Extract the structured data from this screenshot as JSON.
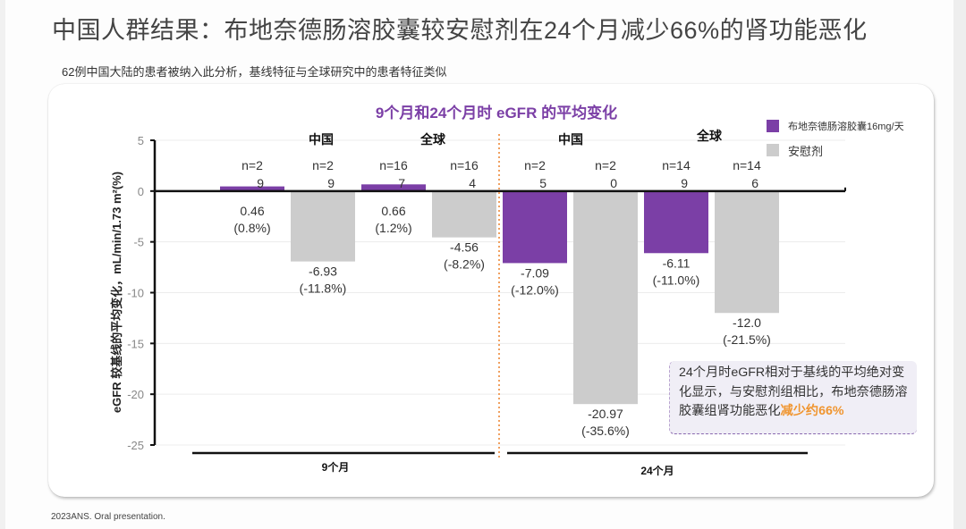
{
  "slide": {
    "title": "中国人群结果：布地奈德肠溶胶囊较安慰剂在24个月减少66%的肾功能恶化",
    "subtitle": "62例中国大陆的患者被纳入此分析，基线特征与全球研究中的患者特征类似",
    "footer": "2023ANS. Oral presentation.",
    "callout": {
      "text": "24个月时eGFR相对于基线的平均绝对变化显示，与安慰剂组相比，布地奈德肠溶胶囊组肾功能恶化",
      "highlight": "减少约66%"
    }
  },
  "colors": {
    "treatment": "#7b3fa6",
    "placebo": "#cccccc",
    "title_purple": "#7b3fa6",
    "divider": "#f0a060",
    "highlight": "#f0952f"
  },
  "chart_data": {
    "type": "bar",
    "title": "9个月和24个月时 eGFR 的平均变化",
    "ylabel": "eGFR 较基线的平均变化，mL/min/1.73 m²(%)",
    "xlabel": "",
    "ylim": [
      -25,
      5
    ],
    "yticks": [
      5,
      0,
      -5,
      -10,
      -15,
      -20,
      -25
    ],
    "grid": true,
    "legend_position": "top-right",
    "legend": [
      {
        "name": "布地奈德肠溶胶囊16mg/天",
        "series": "treatment"
      },
      {
        "name": "安慰剂",
        "series": "placebo"
      }
    ],
    "timepoints": [
      {
        "label": "9个月",
        "groups": [
          "中国",
          "全球"
        ]
      },
      {
        "label": "24个月",
        "groups": [
          "中国",
          "全球"
        ]
      }
    ],
    "bars": [
      {
        "timepoint": "9个月",
        "group": "中国",
        "series": "treatment",
        "n": "n=29",
        "value": 0.46,
        "pct": "(0.8%)",
        "label": "0.46"
      },
      {
        "timepoint": "9个月",
        "group": "中国",
        "series": "placebo",
        "n": "n=29",
        "value": -6.93,
        "pct": "(-11.8%)",
        "label": "-6.93"
      },
      {
        "timepoint": "9个月",
        "group": "全球",
        "series": "treatment",
        "n": "n=167",
        "value": 0.66,
        "pct": "(1.2%)",
        "label": "0.66"
      },
      {
        "timepoint": "9个月",
        "group": "全球",
        "series": "placebo",
        "n": "n=164",
        "value": -4.56,
        "pct": "(-8.2%)",
        "label": "-4.56"
      },
      {
        "timepoint": "24个月",
        "group": "中国",
        "series": "treatment",
        "n": "n=25",
        "value": -7.09,
        "pct": "(-12.0%)",
        "label": "-7.09"
      },
      {
        "timepoint": "24个月",
        "group": "中国",
        "series": "placebo",
        "n": "n=20",
        "value": -20.97,
        "pct": "(-35.6%)",
        "label": "-20.97"
      },
      {
        "timepoint": "24个月",
        "group": "全球",
        "series": "treatment",
        "n": "n=149",
        "value": -6.11,
        "pct": "(-11.0%)",
        "label": "-6.11"
      },
      {
        "timepoint": "24个月",
        "group": "全球",
        "series": "placebo",
        "n": "n=146",
        "value": -12.0,
        "pct": "(-21.5%)",
        "label": "-12.0"
      }
    ]
  }
}
